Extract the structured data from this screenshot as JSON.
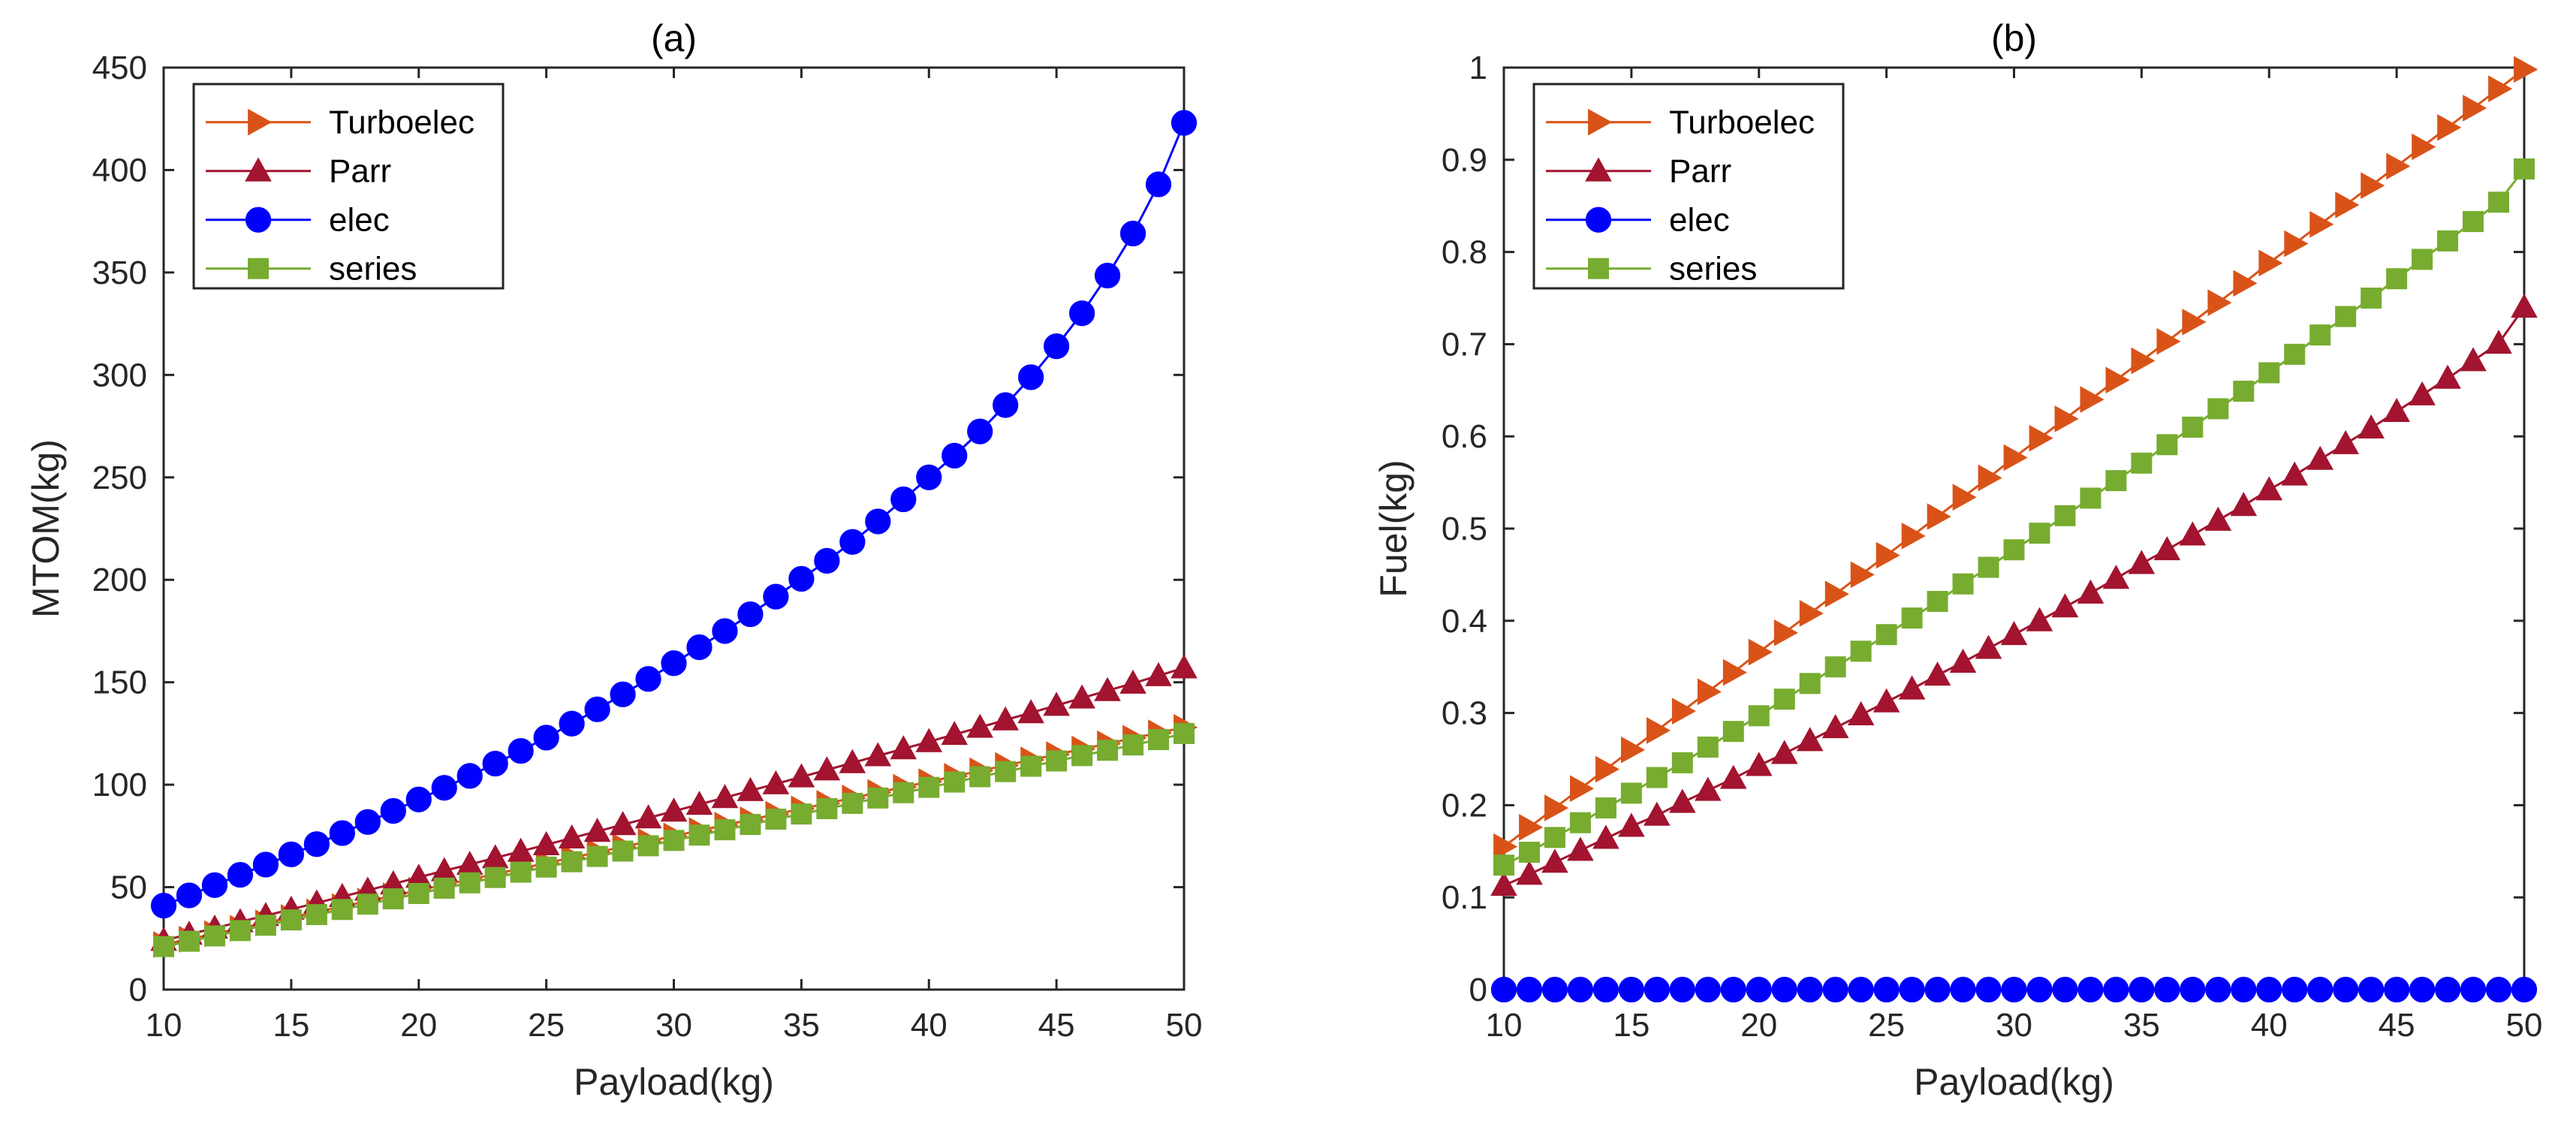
{
  "chart_data": [
    {
      "type": "line",
      "title": "(a)",
      "xlabel": "Payload(kg)",
      "ylabel": "MTOM(kg)",
      "xlim": [
        10,
        50
      ],
      "ylim": [
        0,
        450
      ],
      "xticks": [
        10,
        15,
        20,
        25,
        30,
        35,
        40,
        45,
        50
      ],
      "yticks": [
        0,
        50,
        100,
        150,
        200,
        250,
        300,
        350,
        400,
        450
      ],
      "grid": false,
      "legend": "top-left",
      "x_points": {
        "start": 10,
        "end": 50,
        "step": 1
      },
      "series": [
        {
          "name": "Turboelec",
          "color": "#D95319",
          "marker": "triangle-right",
          "values": [
            22,
            24.6,
            27.3,
            29.9,
            32.6,
            35.2,
            37.9,
            40.5,
            43.2,
            45.8,
            48.5,
            51.1,
            53.8,
            56.4,
            59.1,
            61.7,
            64.4,
            67,
            69.7,
            72.3,
            75,
            77.6,
            80.3,
            82.9,
            85.6,
            88.2,
            90.9,
            93.5,
            96.2,
            98.8,
            101.5,
            104.1,
            106.8,
            109.4,
            112.1,
            114.7,
            117.4,
            120,
            122.7,
            125.3,
            128
          ]
        },
        {
          "name": "Parr",
          "color": "#A2142F",
          "marker": "triangle-up",
          "values": [
            24,
            27,
            30,
            33.1,
            36.1,
            39.2,
            42.3,
            45.4,
            48.5,
            51.6,
            54.8,
            58,
            61.1,
            64.3,
            67.5,
            70.7,
            74,
            77.2,
            80.5,
            83.8,
            87.1,
            90.4,
            93.7,
            97.1,
            100.4,
            103.8,
            107.2,
            110.7,
            114.1,
            117.5,
            121,
            124.5,
            128,
            131.6,
            135.1,
            138.7,
            142.3,
            145.9,
            149.5,
            153.2,
            157
          ]
        },
        {
          "name": "elec",
          "color": "#0000FF",
          "marker": "circle",
          "values": [
            41,
            46,
            51,
            56,
            61,
            66,
            71,
            76.4,
            81.8,
            87.2,
            92.8,
            98.5,
            104.3,
            110.3,
            116.5,
            123,
            129.8,
            136.8,
            144.1,
            151.6,
            159.3,
            167.1,
            175,
            183.2,
            191.8,
            200.5,
            209.3,
            218.5,
            228.5,
            239.3,
            250,
            260.6,
            272.4,
            285.3,
            298.9,
            314,
            330.1,
            348.5,
            369,
            393,
            423
          ]
        },
        {
          "name": "series",
          "color": "#77AC30",
          "marker": "square",
          "values": [
            21,
            23.6,
            26.2,
            28.8,
            31.4,
            34,
            36.6,
            39.1,
            41.7,
            44.3,
            46.9,
            49.5,
            52.1,
            54.7,
            57.3,
            59.8,
            62.4,
            65,
            67.6,
            70.2,
            72.8,
            75.4,
            78,
            80.6,
            83.2,
            85.7,
            88.3,
            90.9,
            93.5,
            96.1,
            98.7,
            101.3,
            103.9,
            106.4,
            109,
            111.6,
            114.2,
            116.8,
            119.4,
            122,
            125
          ]
        }
      ]
    },
    {
      "type": "line",
      "title": "(b)",
      "xlabel": "Payload(kg)",
      "ylabel": "Fuel(kg)",
      "xlim": [
        10,
        50
      ],
      "ylim": [
        0,
        1
      ],
      "xticks": [
        10,
        15,
        20,
        25,
        30,
        35,
        40,
        45,
        50
      ],
      "yticks": [
        0,
        0.1,
        0.2,
        0.3,
        0.4,
        0.5,
        0.6,
        0.7,
        0.8,
        0.9,
        1
      ],
      "ytick_labels": [
        "0",
        "0.1",
        "0.2",
        "0.3",
        "0.4",
        "0.5",
        "0.6",
        "0.7",
        "0.8",
        "0.9",
        "1"
      ],
      "grid": false,
      "legend": "top-left",
      "x_points": {
        "start": 10,
        "end": 50,
        "step": 1
      },
      "series": [
        {
          "name": "Turboelec",
          "color": "#D95319",
          "marker": "triangle-right",
          "values": [
            0.155,
            0.176,
            0.197,
            0.218,
            0.239,
            0.26,
            0.281,
            0.302,
            0.323,
            0.344,
            0.366,
            0.387,
            0.408,
            0.429,
            0.45,
            0.471,
            0.492,
            0.513,
            0.534,
            0.555,
            0.577,
            0.598,
            0.619,
            0.64,
            0.661,
            0.682,
            0.703,
            0.724,
            0.745,
            0.766,
            0.788,
            0.809,
            0.83,
            0.851,
            0.872,
            0.893,
            0.914,
            0.935,
            0.956,
            0.977,
            0.998
          ]
        },
        {
          "name": "Parr",
          "color": "#A2142F",
          "marker": "triangle-up",
          "values": [
            0.113,
            0.125,
            0.138,
            0.151,
            0.164,
            0.177,
            0.189,
            0.203,
            0.216,
            0.229,
            0.243,
            0.256,
            0.27,
            0.284,
            0.298,
            0.312,
            0.326,
            0.341,
            0.355,
            0.37,
            0.385,
            0.4,
            0.415,
            0.43,
            0.446,
            0.462,
            0.477,
            0.493,
            0.509,
            0.525,
            0.542,
            0.558,
            0.575,
            0.592,
            0.609,
            0.627,
            0.645,
            0.663,
            0.682,
            0.701,
            0.74
          ]
        },
        {
          "name": "elec",
          "color": "#0000FF",
          "marker": "circle",
          "values": [
            0,
            0,
            0,
            0,
            0,
            0,
            0,
            0,
            0,
            0,
            0,
            0,
            0,
            0,
            0,
            0,
            0,
            0,
            0,
            0,
            0,
            0,
            0,
            0,
            0,
            0,
            0,
            0,
            0,
            0,
            0,
            0,
            0,
            0,
            0,
            0,
            0,
            0,
            0,
            0,
            0
          ]
        },
        {
          "name": "series",
          "color": "#77AC30",
          "marker": "square",
          "values": [
            0.135,
            0.149,
            0.165,
            0.181,
            0.197,
            0.213,
            0.23,
            0.246,
            0.263,
            0.28,
            0.297,
            0.315,
            0.332,
            0.35,
            0.367,
            0.385,
            0.403,
            0.421,
            0.44,
            0.458,
            0.477,
            0.495,
            0.514,
            0.533,
            0.552,
            0.571,
            0.591,
            0.61,
            0.63,
            0.649,
            0.669,
            0.689,
            0.71,
            0.73,
            0.75,
            0.771,
            0.792,
            0.812,
            0.833,
            0.854,
            0.89
          ]
        }
      ]
    }
  ]
}
